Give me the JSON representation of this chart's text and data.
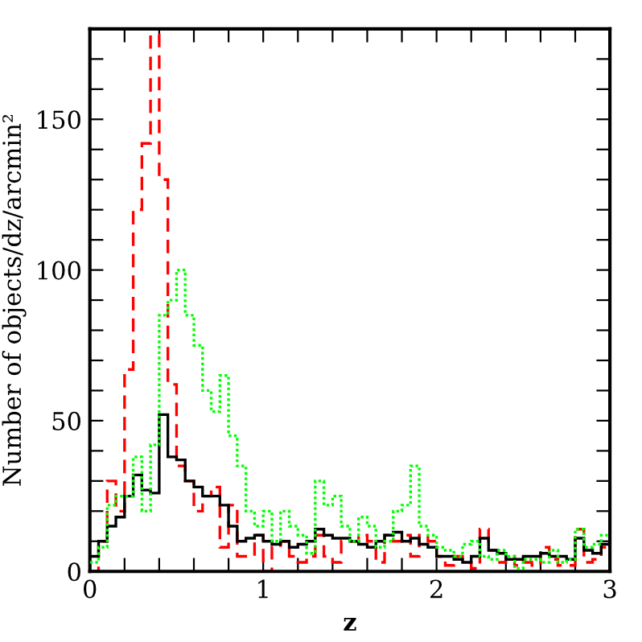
{
  "chart_data": {
    "type": "histogram",
    "xlabel": "z",
    "ylabel": "Number of objects/dz/arcmin²",
    "bins": [
      0,
      0.05,
      0.1,
      0.15,
      0.2,
      0.25,
      0.3,
      0.35,
      0.4,
      0.45,
      0.5,
      0.55,
      0.6,
      0.65,
      0.7,
      0.75,
      0.8,
      0.85,
      0.9,
      0.95,
      1.0,
      1.05,
      1.1,
      1.15,
      1.2,
      1.25,
      1.3,
      1.35,
      1.4,
      1.45,
      1.5,
      1.55,
      1.6,
      1.65,
      1.7,
      1.75,
      1.8,
      1.85,
      1.9,
      1.95,
      2.0,
      2.05,
      2.1,
      2.15,
      2.2,
      2.25,
      2.3,
      2.35,
      2.4,
      2.45,
      2.5,
      2.55,
      2.6,
      2.65,
      2.7,
      2.75,
      2.8,
      2.85,
      2.9,
      2.95,
      3.0
    ],
    "series": [
      {
        "color": "#ff0000",
        "line_style": "dashed",
        "values": [
          0,
          10,
          30,
          20,
          67,
          120,
          142,
          178,
          130,
          62,
          35,
          30,
          20,
          25,
          28,
          8,
          22,
          5,
          5,
          12,
          0,
          8,
          10,
          5,
          3,
          5,
          12,
          5,
          3,
          10,
          10,
          12,
          10,
          3,
          12,
          10,
          12,
          5,
          12,
          10,
          5,
          2,
          5,
          3,
          1,
          14,
          7,
          3,
          5,
          2,
          3,
          2,
          8,
          4,
          2,
          2,
          14,
          3,
          4,
          8
        ]
      },
      {
        "color": "#00ff00",
        "line_style": "dotted",
        "values": [
          3,
          8,
          22,
          25,
          25,
          38,
          20,
          42,
          85,
          90,
          100,
          85,
          75,
          60,
          53,
          65,
          45,
          35,
          20,
          15,
          20,
          10,
          20,
          15,
          12,
          6,
          30,
          22,
          25,
          15,
          10,
          18,
          15,
          8,
          10,
          20,
          22,
          35,
          15,
          12,
          8,
          7,
          5,
          9,
          10,
          5,
          4,
          7,
          5,
          1,
          4,
          4,
          3,
          7,
          3,
          4,
          14,
          8,
          9,
          12
        ]
      },
      {
        "color": "#000000",
        "line_style": "solid",
        "values": [
          5,
          10,
          15,
          18,
          25,
          32,
          27,
          26,
          52,
          38,
          37,
          30,
          28,
          25,
          25,
          22,
          15,
          10,
          11,
          12,
          10,
          9,
          10,
          8,
          9,
          10,
          14,
          12,
          11,
          11,
          10,
          9,
          8,
          10,
          12,
          13,
          10,
          11,
          9,
          8,
          5,
          5,
          4,
          3,
          5,
          11,
          7,
          6,
          4,
          4,
          5,
          5,
          6,
          5,
          5,
          4,
          11,
          7,
          6,
          9
        ]
      }
    ],
    "xlim": [
      0,
      3
    ],
    "ylim": [
      0,
      180
    ],
    "xticks": [
      0,
      {
        "value": 0.2,
        "label": null
      },
      {
        "value": 0.4,
        "label": null
      },
      {
        "value": 0.6,
        "label": null
      },
      {
        "value": 0.8,
        "label": null
      },
      1,
      {
        "value": 1.2,
        "label": null
      },
      {
        "value": 1.4,
        "label": null
      },
      {
        "value": 1.6,
        "label": null
      },
      {
        "value": 1.8,
        "label": null
      },
      2,
      {
        "value": 2.2,
        "label": null
      },
      {
        "value": 2.4,
        "label": null
      },
      {
        "value": 2.6,
        "label": null
      },
      {
        "value": 2.8,
        "label": null
      },
      3
    ],
    "yticks": [
      0,
      {
        "value": 10,
        "label": null
      },
      {
        "value": 20,
        "label": null
      },
      {
        "value": 30,
        "label": null
      },
      {
        "value": 40,
        "label": null
      },
      50,
      {
        "value": 60,
        "label": null
      },
      {
        "value": 70,
        "label": null
      },
      {
        "value": 80,
        "label": null
      },
      {
        "value": 90,
        "label": null
      },
      100,
      {
        "value": 110,
        "label": null
      },
      {
        "value": 120,
        "label": null
      },
      {
        "value": 130,
        "label": null
      },
      {
        "value": 140,
        "label": null
      },
      150,
      {
        "value": 160,
        "label": null
      },
      {
        "value": 170,
        "label": null
      }
    ],
    "grid": false,
    "legend": false
  }
}
